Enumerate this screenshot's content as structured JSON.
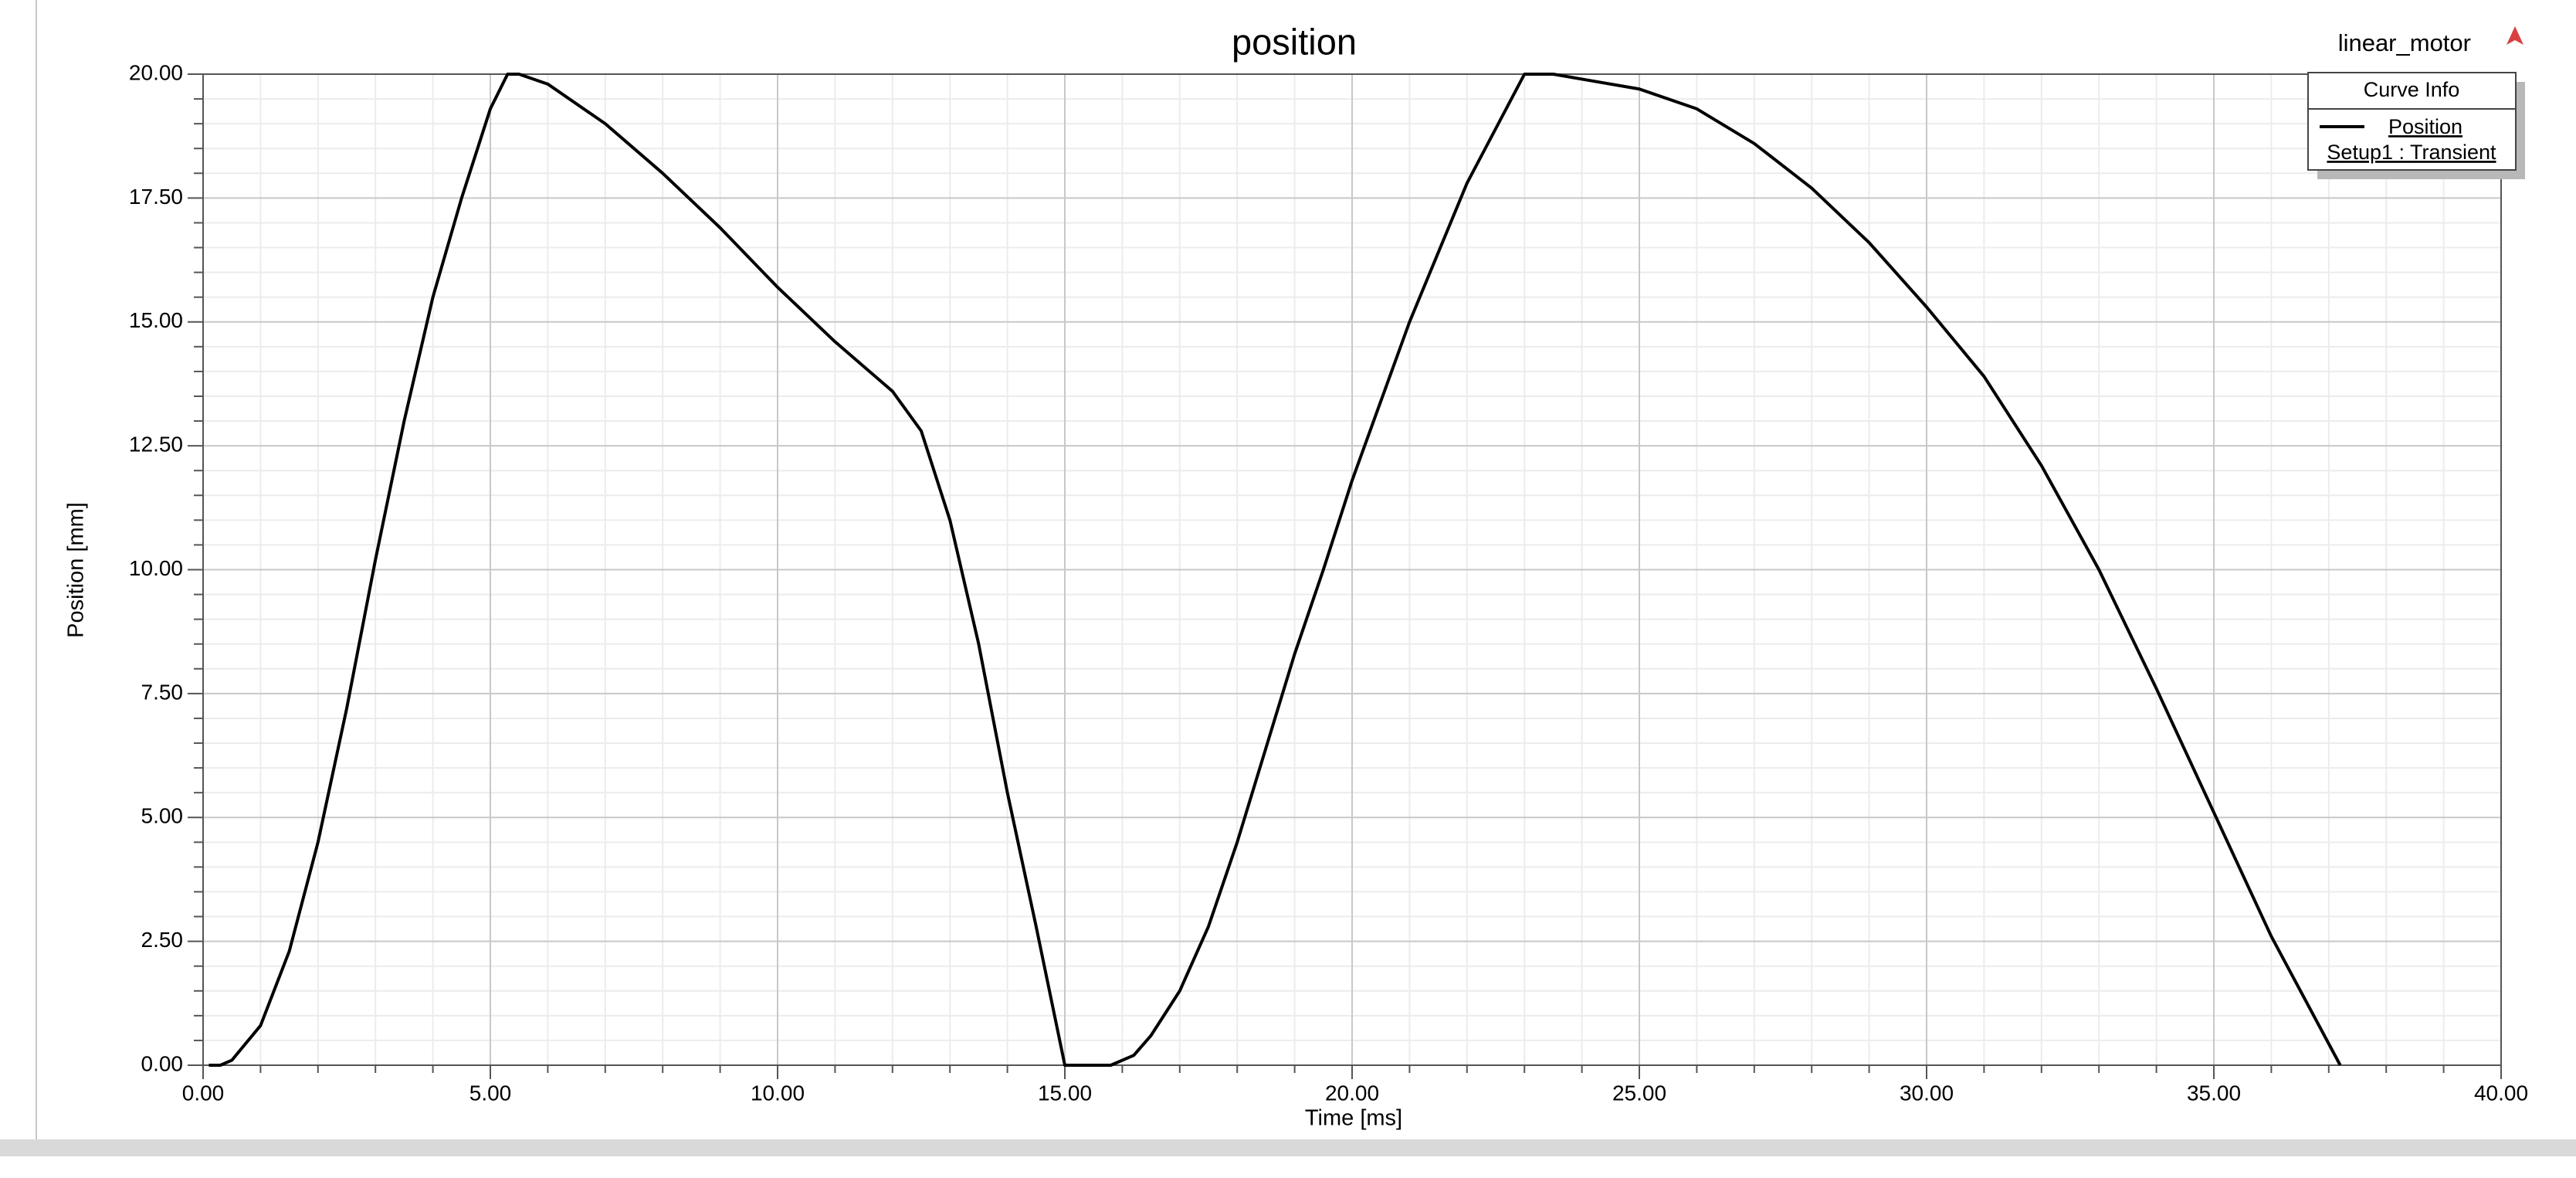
{
  "chart_data": {
    "type": "line",
    "title": "position",
    "design": "linear_motor",
    "legend_title": "Curve Info",
    "x_label": "Time [ms]",
    "y_label": "Position [mm]",
    "x": [
      0.1,
      0.3,
      0.5,
      1.0,
      1.5,
      2.0,
      2.5,
      3.0,
      3.5,
      4.0,
      4.5,
      5.0,
      5.3,
      5.5,
      6.0,
      7.0,
      8.0,
      9.0,
      10.0,
      11.0,
      12.0,
      12.5,
      13.0,
      13.5,
      14.0,
      14.5,
      15.0,
      15.8,
      16.2,
      16.5,
      17.0,
      17.5,
      18.0,
      18.5,
      19.0,
      19.5,
      20.0,
      21.0,
      22.0,
      23.0,
      23.5,
      24.0,
      25.0,
      26.0,
      27.0,
      28.0,
      29.0,
      30.0,
      31.0,
      32.0,
      33.0,
      34.0,
      35.0,
      36.0,
      37.2
    ],
    "series": [
      {
        "name": "Position",
        "solution": "Setup1 : Transient",
        "color": "#000000",
        "values": [
          0,
          0,
          0.1,
          0.8,
          2.3,
          4.5,
          7.2,
          10.2,
          13.0,
          15.5,
          17.5,
          19.3,
          20.0,
          20.0,
          19.8,
          19.0,
          18.0,
          16.9,
          15.7,
          14.6,
          13.6,
          12.8,
          11.0,
          8.5,
          5.5,
          2.8,
          0,
          0,
          0.2,
          0.6,
          1.5,
          2.8,
          4.5,
          6.4,
          8.3,
          10.0,
          11.8,
          15.0,
          17.8,
          20.0,
          20.0,
          19.9,
          19.7,
          19.3,
          18.6,
          17.7,
          16.6,
          15.3,
          13.9,
          12.1,
          10.0,
          7.6,
          5.1,
          2.6,
          0
        ]
      }
    ],
    "xlim": [
      0,
      40
    ],
    "xticks": [
      {
        "value": 0,
        "label": "0.00"
      },
      {
        "value": 5,
        "label": "5.00"
      },
      {
        "value": 10,
        "label": "10.00"
      },
      {
        "value": 15,
        "label": "15.00"
      },
      {
        "value": 20,
        "label": "20.00"
      },
      {
        "value": 25,
        "label": "25.00"
      },
      {
        "value": 30,
        "label": "30.00"
      },
      {
        "value": 35,
        "label": "35.00"
      },
      {
        "value": 40,
        "label": "40.00"
      }
    ],
    "ylim": [
      0,
      20
    ],
    "yticks": [
      {
        "value": 0,
        "label": "0.00"
      },
      {
        "value": 2.5,
        "label": "2.50"
      },
      {
        "value": 5,
        "label": "5.00"
      },
      {
        "value": 7.5,
        "label": "7.50"
      },
      {
        "value": 10,
        "label": "10.00"
      },
      {
        "value": 12.5,
        "label": "12.50"
      },
      {
        "value": 15,
        "label": "15.00"
      },
      {
        "value": 17.5,
        "label": "17.50"
      },
      {
        "value": 20,
        "label": "20.00"
      }
    ],
    "grid": true
  }
}
